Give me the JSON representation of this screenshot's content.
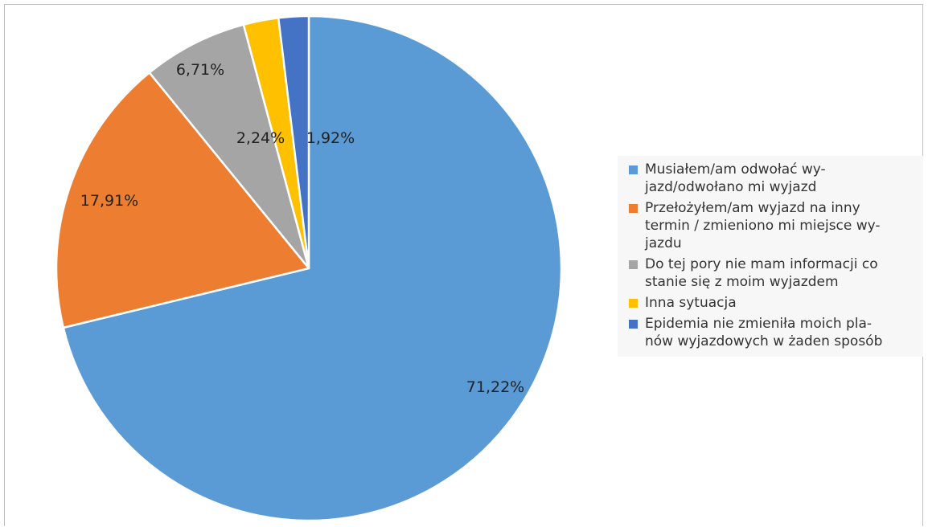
{
  "chart_data": {
    "type": "pie",
    "categories": [
      "Musiałem/am odwołać wy-jazd/odwołano mi wyjazd",
      "Przełożyłem/am wyjazd na inny termin / zmieniono mi miejsce wy-jazdu",
      "Do tej pory nie mam informacji co stanie się z moim wyjazdem",
      "Inna sytuacja",
      "Epidemia nie zmieniła moich pla-nów wyjazdowych w żaden sposób"
    ],
    "values": [
      71.22,
      17.91,
      6.71,
      2.24,
      1.92
    ],
    "data_labels": [
      "71,22%",
      "17,91%",
      "6,71%",
      "2,24%",
      "1,92%"
    ],
    "colors": [
      "#5b9bd5",
      "#ed7d31",
      "#a5a5a5",
      "#ffc000",
      "#4472c4"
    ],
    "legend_lines": [
      [
        "Musiałem/am odwołać wy-",
        "jazd/odwołano mi wyjazd"
      ],
      [
        "Przełożyłem/am wyjazd na inny",
        "termin / zmieniono mi miejsce wy-",
        "jazdu"
      ],
      [
        "Do tej pory nie mam informacji co",
        "stanie się z moim wyjazdem"
      ],
      [
        "Inna sytuacja"
      ],
      [
        "Epidemia nie zmieniła moich pla-",
        "nów wyjazdowych w żaden sposób"
      ]
    ],
    "legend_position": "right",
    "start_angle_deg": 0,
    "direction": "clockwise"
  }
}
